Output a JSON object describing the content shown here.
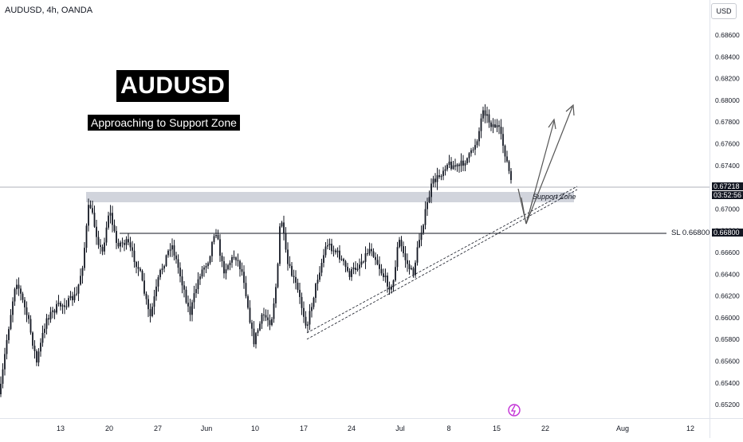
{
  "header": {
    "symbol": "AUDUSD, 4h, OANDA",
    "currency": "USD"
  },
  "annotations": {
    "title": "AUDUSD",
    "subtitle": "Approaching to Support Zone",
    "support_zone_label": "Support Zone",
    "sl_label": "SL 0.66800"
  },
  "price_tags": {
    "current_price": "0.67218",
    "countdown": "03:52:56",
    "sl_price": "0.66800"
  },
  "colors": {
    "candle": "#131722",
    "zone": "#d1d4dc",
    "price_line": "#9598a1",
    "event_icon": "#c22fd6"
  },
  "chart_data": {
    "type": "candlestick",
    "timeframe": "4h",
    "y_axis_side": "right",
    "ylim": [
      0.651,
      0.688
    ],
    "y_ticks": [
      "0.68600",
      "0.68400",
      "0.68200",
      "0.68000",
      "0.67800",
      "0.67600",
      "0.67400",
      "0.67200",
      "0.67000",
      "0.66800",
      "0.66600",
      "0.66400",
      "0.66200",
      "0.66000",
      "0.65800",
      "0.65600",
      "0.65400",
      "0.65200"
    ],
    "x_ticks": [
      "13",
      "20",
      "27",
      "Jun",
      "10",
      "17",
      "24",
      "Jul",
      "8",
      "15",
      "22",
      "Aug",
      "12"
    ],
    "approx_close_path": [
      {
        "x": "13",
        "y": 0.6565
      },
      {
        "x": "20",
        "y": 0.668
      },
      {
        "x": "27",
        "y": 0.661
      },
      {
        "x": "Jun",
        "y": 0.669
      },
      {
        "x": "10",
        "y": 0.6582
      },
      {
        "x": "17",
        "y": 0.6605
      },
      {
        "x": "24",
        "y": 0.665
      },
      {
        "x": "Jul",
        "y": 0.668
      },
      {
        "x": "8",
        "y": 0.6745
      },
      {
        "x": "15",
        "y": 0.6785
      }
    ],
    "last_price": 0.67218,
    "support_zone": [
      0.6707,
      0.6718
    ],
    "stop_loss": 0.668,
    "rising_channel_line": {
      "from": {
        "x": "17",
        "y": 0.6585
      },
      "to": {
        "x": "22",
        "y": 0.6717
      }
    }
  }
}
